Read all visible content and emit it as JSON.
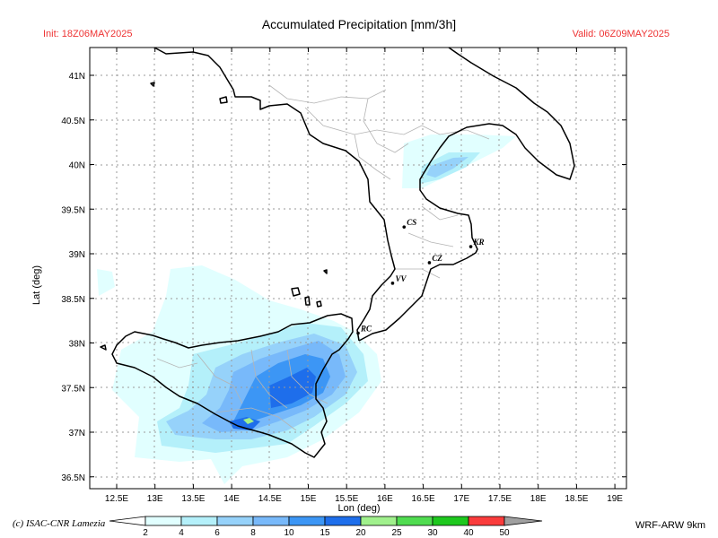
{
  "header": {
    "title": "Accumulated Precipitation [mm/3h]",
    "init": "Init: 18Z06MAY2025",
    "valid": "Valid: 06Z09MAY2025"
  },
  "axes": {
    "xlabel": "Lon (deg)",
    "ylabel": "Lat (deg)",
    "xticks": [
      "12.5E",
      "13E",
      "13.5E",
      "14E",
      "14.5E",
      "15E",
      "15.5E",
      "16E",
      "16.5E",
      "17E",
      "17.5E",
      "18E",
      "18.5E",
      "19E"
    ],
    "yticks": [
      "41N",
      "40.5N",
      "40N",
      "39.5N",
      "39N",
      "38.5N",
      "38N",
      "37.5N",
      "37N",
      "36.5N"
    ],
    "xlim": [
      12.5,
      19
    ],
    "ylim": [
      36.5,
      41
    ]
  },
  "cities": [
    {
      "label": "CS",
      "lon": 16.25,
      "lat": 39.3
    },
    {
      "label": "KR",
      "lon": 17.12,
      "lat": 39.08
    },
    {
      "label": "CZ",
      "lon": 16.58,
      "lat": 38.9
    },
    {
      "label": "VV",
      "lon": 16.1,
      "lat": 38.67
    },
    {
      "label": "RC",
      "lon": 15.65,
      "lat": 38.11
    }
  ],
  "colorbar": {
    "labels": [
      "2",
      "4",
      "6",
      "8",
      "10",
      "15",
      "20",
      "25",
      "30",
      "40",
      "50"
    ],
    "colors": [
      "#e1ffff",
      "#b4f0fa",
      "#96d2fa",
      "#78b9fa",
      "#3c96f5",
      "#1e6eeb",
      "#a0f08c",
      "#50dc50",
      "#1ec81e",
      "#fa3c3c",
      "#a0a0a0"
    ]
  },
  "footer": {
    "copyright": "(c) ISAC-CNR Lamezia",
    "model": "WRF-ARW  9km"
  }
}
